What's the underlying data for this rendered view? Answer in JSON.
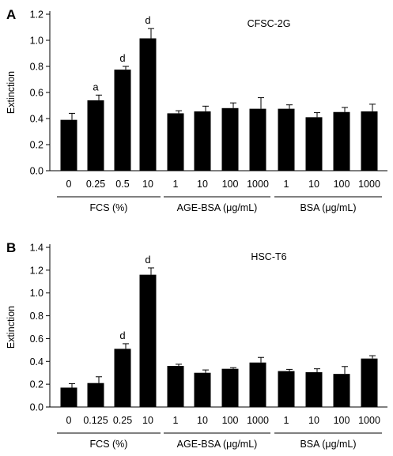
{
  "chart_data": [
    {
      "type": "bar",
      "panel_label": "A",
      "cell_line": "CFSC-2G",
      "ylabel": "Extinction",
      "ylim": [
        0,
        1.2
      ],
      "yticks": [
        "0.0",
        "0.2",
        "0.4",
        "0.6",
        "0.8",
        "1.0",
        "1.2"
      ],
      "categories": [
        "0",
        "0.25",
        "0.5",
        "10",
        "1",
        "10",
        "100",
        "1000",
        "1",
        "10",
        "100",
        "1000"
      ],
      "values": [
        0.39,
        0.54,
        0.775,
        1.015,
        0.44,
        0.455,
        0.48,
        0.475,
        0.475,
        0.41,
        0.45,
        0.455
      ],
      "errors": [
        0.05,
        0.04,
        0.025,
        0.075,
        0.02,
        0.04,
        0.04,
        0.085,
        0.03,
        0.035,
        0.035,
        0.055
      ],
      "annotations": [
        "",
        "a",
        "d",
        "d",
        "",
        "",
        "",
        "",
        "",
        "",
        "",
        ""
      ],
      "groups": [
        {
          "label": "FCS (%)",
          "count": 4
        },
        {
          "label": "AGE-BSA (μg/mL)",
          "count": 4
        },
        {
          "label": "BSA (μg/mL)",
          "count": 4
        }
      ],
      "grid": false
    },
    {
      "type": "bar",
      "panel_label": "B",
      "cell_line": "HSC-T6",
      "ylabel": "Extinction",
      "ylim": [
        0,
        1.4
      ],
      "yticks": [
        "0.0",
        "0.2",
        "0.4",
        "0.6",
        "0.8",
        "1.0",
        "1.2",
        "1.4"
      ],
      "categories": [
        "0",
        "0.125",
        "0.25",
        "10",
        "1",
        "10",
        "100",
        "1000",
        "1",
        "10",
        "100",
        "1000"
      ],
      "values": [
        0.17,
        0.21,
        0.51,
        1.16,
        0.36,
        0.3,
        0.335,
        0.39,
        0.315,
        0.305,
        0.29,
        0.425
      ],
      "errors": [
        0.035,
        0.055,
        0.045,
        0.06,
        0.015,
        0.025,
        0.01,
        0.045,
        0.015,
        0.03,
        0.065,
        0.025
      ],
      "annotations": [
        "",
        "",
        "d",
        "d",
        "",
        "",
        "",
        "",
        "",
        "",
        "",
        ""
      ],
      "groups": [
        {
          "label": "FCS (%)",
          "count": 4
        },
        {
          "label": "AGE-BSA (μg/mL)",
          "count": 4
        },
        {
          "label": "BSA (μg/mL)",
          "count": 4
        }
      ],
      "grid": false
    }
  ]
}
